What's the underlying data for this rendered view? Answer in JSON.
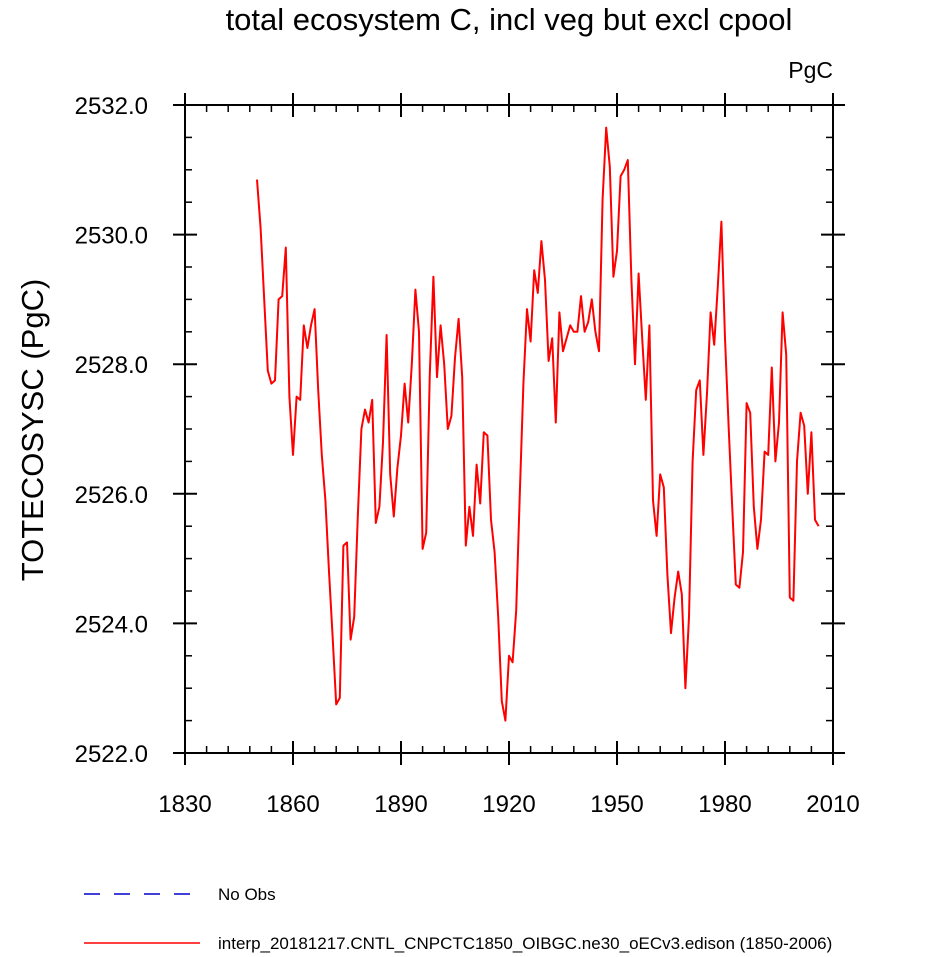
{
  "chart_data": {
    "type": "line",
    "title": "total ecosystem C, incl veg but excl cpool",
    "units": "PgC",
    "xlabel": "",
    "ylabel": "TOTECOSYSC  (PgC)",
    "xlim": [
      1830,
      2010
    ],
    "ylim": [
      2522.0,
      2532.0
    ],
    "x_major_ticks": [
      1830,
      1860,
      1890,
      1920,
      1950,
      1980,
      2010
    ],
    "x_minor_step": 6,
    "y_major_ticks": [
      2522.0,
      2524.0,
      2526.0,
      2528.0,
      2530.0,
      2532.0
    ],
    "y_minor_step": 0.5,
    "x_tick_labels": [
      "1830",
      "1860",
      "1890",
      "1920",
      "1950",
      "1980",
      "2010"
    ],
    "y_tick_labels": [
      "2522.0",
      "2524.0",
      "2526.0",
      "2528.0",
      "2530.0",
      "2532.0"
    ],
    "x_start": 1850,
    "series": [
      {
        "name": "No Obs",
        "color": "#0000cc",
        "style": "dashed",
        "values": []
      },
      {
        "name": "interp_20181217.CNTL_CNPCTC1850_OIBGC.ne30_oECv3.edison (1850-2006)",
        "color": "#ff0000",
        "style": "solid",
        "values": [
          2530.85,
          2530.1,
          2529.0,
          2527.9,
          2527.7,
          2527.75,
          2529.0,
          2529.05,
          2529.8,
          2527.5,
          2526.6,
          2527.5,
          2527.45,
          2528.6,
          2528.25,
          2528.6,
          2528.85,
          2527.6,
          2526.6,
          2525.9,
          2524.8,
          2523.8,
          2522.75,
          2522.85,
          2525.2,
          2525.25,
          2523.75,
          2524.1,
          2525.65,
          2527.0,
          2527.3,
          2527.1,
          2527.45,
          2525.55,
          2525.8,
          2526.8,
          2528.45,
          2526.3,
          2525.65,
          2526.4,
          2526.9,
          2527.7,
          2527.1,
          2528.0,
          2529.15,
          2528.5,
          2525.15,
          2525.4,
          2527.85,
          2529.35,
          2527.8,
          2528.6,
          2528.0,
          2527.0,
          2527.2,
          2528.1,
          2528.7,
          2527.8,
          2525.2,
          2525.8,
          2525.35,
          2526.45,
          2525.85,
          2526.95,
          2526.9,
          2525.6,
          2525.1,
          2524.1,
          2522.8,
          2522.5,
          2523.5,
          2523.4,
          2524.2,
          2526.0,
          2527.7,
          2528.85,
          2528.35,
          2529.45,
          2529.1,
          2529.9,
          2529.3,
          2528.05,
          2528.4,
          2527.1,
          2528.8,
          2528.2,
          2528.4,
          2528.6,
          2528.5,
          2528.5,
          2529.05,
          2528.5,
          2528.65,
          2529.0,
          2528.5,
          2528.2,
          2530.55,
          2531.65,
          2531.05,
          2529.35,
          2529.75,
          2530.9,
          2531.0,
          2531.15,
          2529.3,
          2528.0,
          2529.4,
          2528.4,
          2527.45,
          2528.6,
          2525.9,
          2525.35,
          2526.3,
          2526.1,
          2524.75,
          2523.85,
          2524.4,
          2524.8,
          2524.45,
          2523.0,
          2524.1,
          2526.5,
          2527.6,
          2527.75,
          2526.6,
          2527.55,
          2528.8,
          2528.3,
          2529.2,
          2530.2,
          2528.4,
          2527.05,
          2525.8,
          2524.6,
          2524.55,
          2525.1,
          2527.4,
          2527.25,
          2525.8,
          2525.15,
          2525.6,
          2526.65,
          2526.6,
          2527.95,
          2526.5,
          2527.1,
          2528.8,
          2528.15,
          2524.4,
          2524.35,
          2526.5,
          2527.25,
          2527.05,
          2526.0,
          2526.95,
          2525.6,
          2525.5
        ]
      }
    ]
  }
}
